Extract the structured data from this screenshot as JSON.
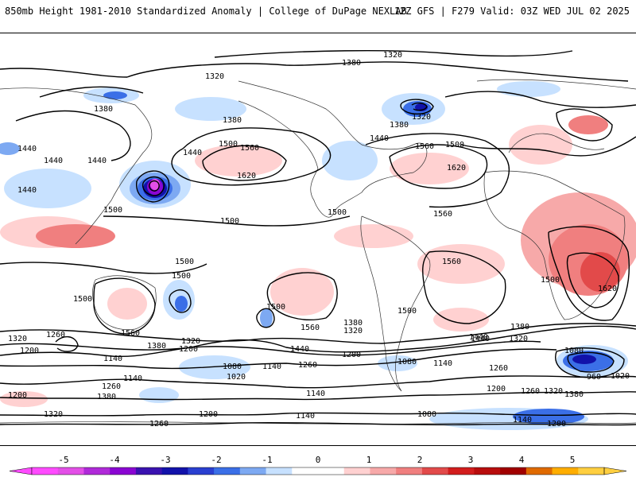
{
  "header": {
    "title": "850mb Height 1981-2010 Standardized Anomaly | College of DuPage NEXLAB",
    "run_info": "12Z GFS | F279 Valid: 03Z WED JUL 02 2025"
  },
  "colorbar": {
    "ticks": [
      {
        "value": "-5",
        "color": "#e34fe7"
      },
      {
        "value": "-4",
        "color": "#8a05d2"
      },
      {
        "value": "-3",
        "color": "#1212aa"
      },
      {
        "value": "-2",
        "color": "#3b6fe7"
      },
      {
        "value": "-1",
        "color": "#c7e1ff"
      },
      {
        "value": "0",
        "color": "#ffffff"
      },
      {
        "value": "1",
        "color": "#ffd1d1"
      },
      {
        "value": "2",
        "color": "#f07f7f"
      },
      {
        "value": "3",
        "color": "#d21d1d"
      },
      {
        "value": "4",
        "color": "#a10000"
      },
      {
        "value": "5",
        "color": "#ffae00"
      }
    ],
    "segments": [
      "#ff4bff",
      "#e34fe7",
      "#b02ad9",
      "#8a05d2",
      "#3a12b0",
      "#1212aa",
      "#2a3fd0",
      "#3b6fe7",
      "#7da9f2",
      "#c7e1ff",
      "#ffffff",
      "#ffffff",
      "#ffd1d1",
      "#f7a9a9",
      "#f07f7f",
      "#e24a4a",
      "#d21d1d",
      "#b80d0d",
      "#a10000",
      "#e06a00",
      "#ffae00",
      "#ffcf40"
    ]
  },
  "contour_labels": [
    {
      "id": "l1320a",
      "text": "1320"
    },
    {
      "id": "l1380a",
      "text": "1380"
    },
    {
      "id": "l1320b",
      "text": "1320"
    },
    {
      "id": "l1380b",
      "text": "1380"
    },
    {
      "id": "l1440a",
      "text": "1440"
    },
    {
      "id": "l1440b",
      "text": "1440"
    },
    {
      "id": "l1440c",
      "text": "1440"
    },
    {
      "id": "l1380c",
      "text": "1380"
    },
    {
      "id": "l1500a",
      "text": "1500"
    },
    {
      "id": "l1560a",
      "text": "1560"
    },
    {
      "id": "l1620a",
      "text": "1620"
    },
    {
      "id": "l1440d",
      "text": "1440"
    },
    {
      "id": "l1500b",
      "text": "1500"
    },
    {
      "id": "l1440e",
      "text": "1440"
    },
    {
      "id": "l1320c",
      "text": "1320"
    },
    {
      "id": "l1380d",
      "text": "1380"
    },
    {
      "id": "l1440f",
      "text": "1440"
    },
    {
      "id": "l1560b",
      "text": "1560"
    },
    {
      "id": "l1500c",
      "text": "1500"
    },
    {
      "id": "l1620b",
      "text": "1620"
    },
    {
      "id": "l1500d",
      "text": "1500"
    },
    {
      "id": "l1500e",
      "text": "1500"
    },
    {
      "id": "l1500f",
      "text": "1500"
    },
    {
      "id": "l1560c",
      "text": "1560"
    },
    {
      "id": "l1500g",
      "text": "1500"
    },
    {
      "id": "l1500h",
      "text": "1500"
    },
    {
      "id": "l1500i",
      "text": "1500"
    },
    {
      "id": "l1560d",
      "text": "1560"
    },
    {
      "id": "l1560e",
      "text": "1560"
    },
    {
      "id": "l1620c",
      "text": "1620"
    },
    {
      "id": "l1500j",
      "text": "1500"
    },
    {
      "id": "l1500k",
      "text": "1500"
    },
    {
      "id": "l1440g",
      "text": "1440"
    },
    {
      "id": "l1560f",
      "text": "1560"
    },
    {
      "id": "l1260a",
      "text": "1260"
    },
    {
      "id": "l1320d",
      "text": "1320"
    },
    {
      "id": "l1200a",
      "text": "1200"
    },
    {
      "id": "l1380e",
      "text": "1380"
    },
    {
      "id": "l1320e",
      "text": "1320"
    },
    {
      "id": "l1200b",
      "text": "1200"
    },
    {
      "id": "l1140a",
      "text": "1140"
    },
    {
      "id": "l1080a",
      "text": "1080"
    },
    {
      "id": "l1140b",
      "text": "1140"
    },
    {
      "id": "l1020a",
      "text": "1020"
    },
    {
      "id": "l1260b",
      "text": "1260"
    },
    {
      "id": "l1440h",
      "text": "1440"
    },
    {
      "id": "l1380f",
      "text": "1380"
    },
    {
      "id": "l1320f",
      "text": "1320"
    },
    {
      "id": "l1200c",
      "text": "1200"
    },
    {
      "id": "l1080b",
      "text": "1080"
    },
    {
      "id": "l1140c",
      "text": "1140"
    },
    {
      "id": "l1440i",
      "text": "1440"
    },
    {
      "id": "l1380g",
      "text": "1380"
    },
    {
      "id": "l1320g",
      "text": "1320"
    },
    {
      "id": "l1260c",
      "text": "1260"
    },
    {
      "id": "l1080c",
      "text": "1080"
    },
    {
      "id": "l960a",
      "text": "960"
    },
    {
      "id": "l1020b",
      "text": "1020"
    },
    {
      "id": "l1200d",
      "text": "1200"
    },
    {
      "id": "l1260d",
      "text": "1260"
    },
    {
      "id": "l1320h",
      "text": "1320"
    },
    {
      "id": "l1380h",
      "text": "1380"
    },
    {
      "id": "l1140d",
      "text": "1140"
    },
    {
      "id": "l1260e",
      "text": "1260"
    },
    {
      "id": "l1380i",
      "text": "1380"
    },
    {
      "id": "l1200e",
      "text": "1200"
    },
    {
      "id": "l1320i",
      "text": "1320"
    },
    {
      "id": "l1260f",
      "text": "1260"
    },
    {
      "id": "l1200f",
      "text": "1200"
    },
    {
      "id": "l1140e",
      "text": "1140"
    },
    {
      "id": "l1140f",
      "text": "1140"
    },
    {
      "id": "l1080d",
      "text": "1080"
    },
    {
      "id": "l1140g",
      "text": "1140"
    },
    {
      "id": "l1200g",
      "text": "1200"
    }
  ]
}
